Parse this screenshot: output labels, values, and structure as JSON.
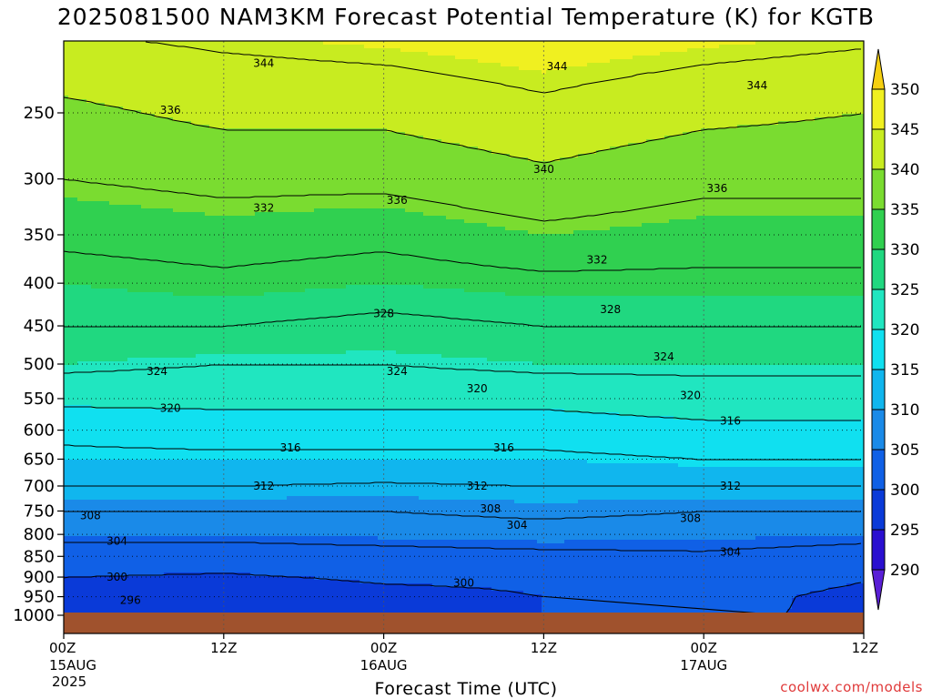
{
  "title": "2025081500 NAM3KM Forecast Potential Temperature (K) for KGTB",
  "watermark": "coolwx.com/models",
  "chart_data": {
    "type": "contour",
    "title": "2025081500 NAM3KM Forecast Potential Temperature (K) for KGTB",
    "xlabel": "Forecast Time (UTC)",
    "ylabel": "",
    "x_unit": "forecast hour",
    "xlim": [
      0,
      60
    ],
    "ylim": [
      1000,
      200
    ],
    "y_scale": "log",
    "x_ticks": [
      {
        "x": 0,
        "label": "00Z",
        "sub": "15AUG",
        "sub2": "2025"
      },
      {
        "x": 12,
        "label": "12Z",
        "sub": "",
        "sub2": ""
      },
      {
        "x": 24,
        "label": "00Z",
        "sub": "16AUG",
        "sub2": ""
      },
      {
        "x": 36,
        "label": "12Z",
        "sub": "",
        "sub2": ""
      },
      {
        "x": 48,
        "label": "00Z",
        "sub": "17AUG",
        "sub2": ""
      },
      {
        "x": 60,
        "label": "12Z",
        "sub": "",
        "sub2": ""
      }
    ],
    "y_ticks": [
      250,
      300,
      350,
      400,
      450,
      500,
      550,
      600,
      650,
      700,
      750,
      800,
      850,
      900,
      950,
      1000
    ],
    "grid": true,
    "colorbar": {
      "labels": [
        290,
        295,
        300,
        305,
        310,
        315,
        320,
        325,
        330,
        335,
        340,
        345,
        350
      ],
      "colors": [
        "#5a1fd6",
        "#2a0fd0",
        "#0a3ad8",
        "#1060e6",
        "#1a8ae8",
        "#10b6ee",
        "#10e0f0",
        "#20e6c0",
        "#20d880",
        "#30d050",
        "#7adc30",
        "#c8ec20",
        "#f0f020",
        "#f6d010"
      ]
    },
    "profiles": [
      {
        "x": 0,
        "p": [
          1000,
          950,
          900,
          850,
          800,
          750,
          700,
          650,
          600,
          550,
          500,
          450,
          400,
          350,
          300,
          250,
          200
        ],
        "theta": [
          299,
          298.5,
          300,
          302,
          305,
          308,
          312,
          315,
          317,
          321,
          325,
          328,
          330,
          333,
          336,
          339,
          344
        ]
      },
      {
        "x": 12,
        "p": [
          1000,
          950,
          900,
          850,
          800,
          750,
          700,
          650,
          600,
          550,
          500,
          450,
          400,
          350,
          300,
          250,
          200
        ],
        "theta": [
          298,
          297.5,
          299.5,
          302,
          305,
          308,
          312,
          315,
          318,
          321,
          324,
          328,
          331,
          334,
          337,
          341,
          345
        ]
      },
      {
        "x": 24,
        "p": [
          1000,
          950,
          900,
          850,
          800,
          750,
          700,
          650,
          600,
          550,
          500,
          450,
          400,
          350,
          300,
          250,
          200
        ],
        "theta": [
          299,
          299,
          300.5,
          302.5,
          305.5,
          308,
          311.5,
          315,
          318,
          321,
          324,
          327,
          330,
          333,
          337,
          341,
          346
        ]
      },
      {
        "x": 36,
        "p": [
          1000,
          950,
          900,
          850,
          800,
          750,
          700,
          650,
          600,
          550,
          500,
          450,
          400,
          350,
          300,
          250,
          200
        ],
        "theta": [
          300,
          300,
          300.5,
          303,
          306,
          309,
          312,
          315,
          318,
          321,
          325,
          328,
          331,
          335,
          339,
          343,
          347
        ]
      },
      {
        "x": 48,
        "p": [
          1000,
          950,
          900,
          850,
          800,
          750,
          700,
          650,
          600,
          550,
          500,
          450,
          400,
          350,
          300,
          250,
          200
        ],
        "theta": [
          301,
          302,
          303,
          303.5,
          305.5,
          308,
          312,
          316,
          319,
          322,
          325,
          328,
          331,
          334,
          337,
          341,
          346
        ]
      },
      {
        "x": 60,
        "p": [
          1000,
          950,
          900,
          850,
          800,
          750,
          700,
          650,
          600,
          550,
          500,
          450,
          400,
          350,
          300,
          250,
          200
        ],
        "theta": [
          299,
          298.5,
          300.5,
          302.5,
          305,
          308,
          312,
          316,
          319,
          322,
          325,
          328,
          331,
          334,
          337,
          340,
          345
        ]
      }
    ],
    "contour_interval": 4,
    "contour_labels": [
      {
        "x": 5,
        "p": 960,
        "text": "296"
      },
      {
        "x": 4,
        "p": 900,
        "text": "300"
      },
      {
        "x": 30,
        "p": 915,
        "text": "300"
      },
      {
        "x": 4,
        "p": 815,
        "text": "304"
      },
      {
        "x": 34,
        "p": 780,
        "text": "304"
      },
      {
        "x": 50,
        "p": 840,
        "text": "304"
      },
      {
        "x": 2,
        "p": 760,
        "text": "308"
      },
      {
        "x": 32,
        "p": 745,
        "text": "308"
      },
      {
        "x": 47,
        "p": 765,
        "text": "308"
      },
      {
        "x": 15,
        "p": 700,
        "text": "312"
      },
      {
        "x": 31,
        "p": 700,
        "text": "312"
      },
      {
        "x": 50,
        "p": 700,
        "text": "312"
      },
      {
        "x": 17,
        "p": 630,
        "text": "316"
      },
      {
        "x": 33,
        "p": 630,
        "text": "316"
      },
      {
        "x": 50,
        "p": 585,
        "text": "316"
      },
      {
        "x": 8,
        "p": 565,
        "text": "320"
      },
      {
        "x": 31,
        "p": 535,
        "text": "320"
      },
      {
        "x": 47,
        "p": 545,
        "text": "320"
      },
      {
        "x": 7,
        "p": 510,
        "text": "324"
      },
      {
        "x": 25,
        "p": 510,
        "text": "324"
      },
      {
        "x": 45,
        "p": 490,
        "text": "324"
      },
      {
        "x": 24,
        "p": 435,
        "text": "328"
      },
      {
        "x": 41,
        "p": 430,
        "text": "328"
      },
      {
        "x": 15,
        "p": 325,
        "text": "332"
      },
      {
        "x": 40,
        "p": 375,
        "text": "332"
      },
      {
        "x": 25,
        "p": 318,
        "text": "336"
      },
      {
        "x": 49,
        "p": 308,
        "text": "336"
      },
      {
        "x": 8,
        "p": 248,
        "text": "336"
      },
      {
        "x": 36,
        "p": 292,
        "text": "340"
      },
      {
        "x": 15,
        "p": 218,
        "text": "344"
      },
      {
        "x": 37,
        "p": 220,
        "text": "344"
      },
      {
        "x": 52,
        "p": 232,
        "text": "344"
      }
    ]
  }
}
